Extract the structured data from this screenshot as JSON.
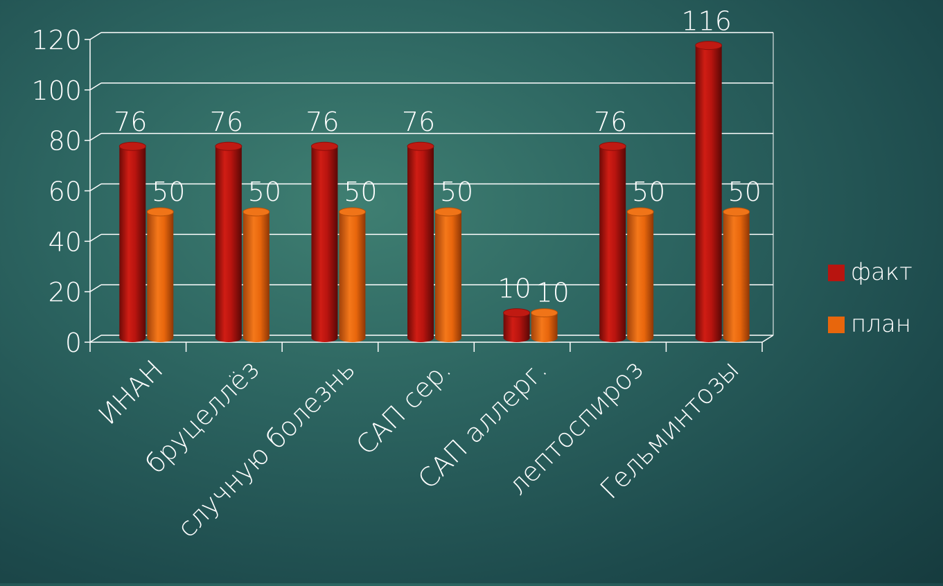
{
  "chart_data": {
    "type": "bar",
    "categories": [
      "ИНАН",
      "бруцеллёз",
      "случную болезнь",
      "САП сер.",
      "САП аллерг.",
      "лептоспироз",
      "Гельминтозы"
    ],
    "series": [
      {
        "name": "факт",
        "values": [
          76,
          76,
          76,
          76,
          10,
          76,
          116
        ],
        "color": "#b8140f"
      },
      {
        "name": "план",
        "values": [
          50,
          50,
          50,
          50,
          10,
          50,
          50
        ],
        "color": "#e8660c"
      }
    ],
    "data_labels": [
      [
        "76",
        "76",
        "76",
        "76",
        "10",
        "76",
        "116"
      ],
      [
        "50",
        "50",
        "50",
        "50",
        "10",
        "50",
        "50"
      ]
    ],
    "ylim": [
      0,
      120
    ],
    "yticks": [
      "0",
      "20",
      "40",
      "60",
      "80",
      "100",
      "120"
    ],
    "grid": true,
    "legend_position": "right",
    "style": "3d-cylinder"
  }
}
